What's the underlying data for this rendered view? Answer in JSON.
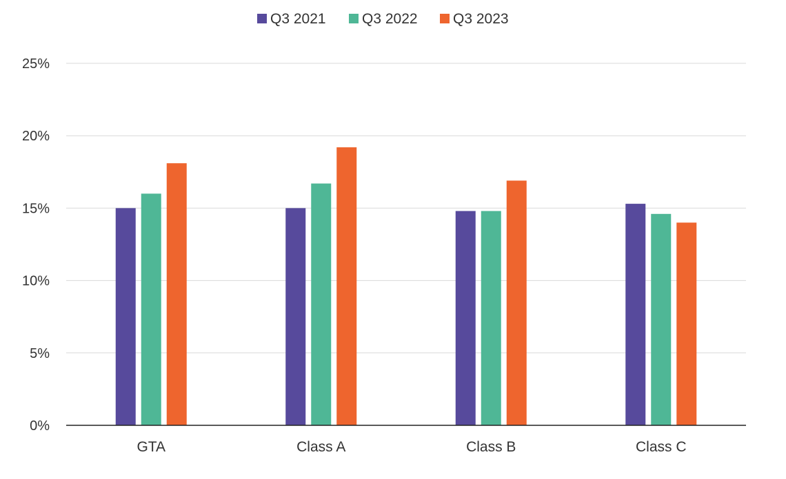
{
  "chart_data": {
    "type": "bar",
    "title": "",
    "xlabel": "",
    "ylabel": "",
    "categories": [
      "GTA",
      "Class A",
      "Class B",
      "Class C"
    ],
    "series": [
      {
        "name": "Q3 2021",
        "color": "#574a9c",
        "values": [
          15.0,
          15.0,
          14.8,
          15.3
        ]
      },
      {
        "name": "Q3 2022",
        "color": "#4fb796",
        "values": [
          16.0,
          16.7,
          14.8,
          14.6
        ]
      },
      {
        "name": "Q3 2023",
        "color": "#ee652e",
        "values": [
          18.1,
          19.2,
          16.9,
          14.0
        ]
      }
    ],
    "ylim": [
      0,
      25
    ],
    "y_ticks": [
      0,
      5,
      10,
      15,
      20,
      25
    ],
    "y_tick_labels": [
      "0%",
      "5%",
      "10%",
      "15%",
      "20%",
      "25%"
    ],
    "value_unit": "%",
    "grid": true,
    "legend_position": "top-center"
  }
}
